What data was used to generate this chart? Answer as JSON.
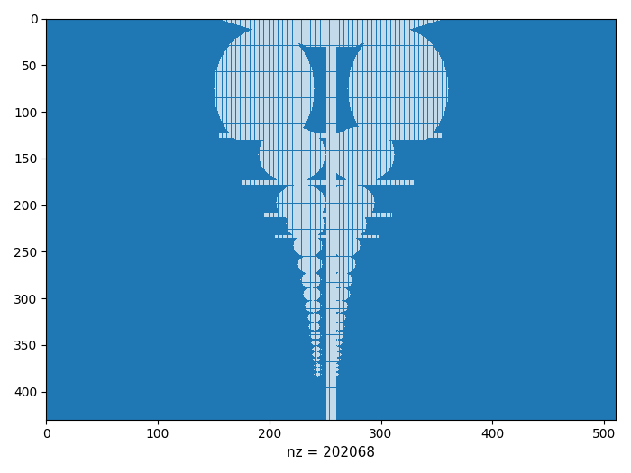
{
  "title": "",
  "xlabel_bottom": "nz = 202068",
  "bg_color": "#1f77b4",
  "dot_color": "white",
  "matrix_rows": 430,
  "matrix_cols": 510,
  "nz": 202068,
  "xlim": [
    0,
    510
  ],
  "ylim": [
    0,
    430
  ],
  "xticks": [
    0,
    100,
    200,
    300,
    400,
    500
  ],
  "yticks": [
    0,
    50,
    100,
    150,
    200,
    250,
    300,
    350,
    400
  ],
  "figsize": [
    7.0,
    5.25
  ],
  "dpi": 100
}
